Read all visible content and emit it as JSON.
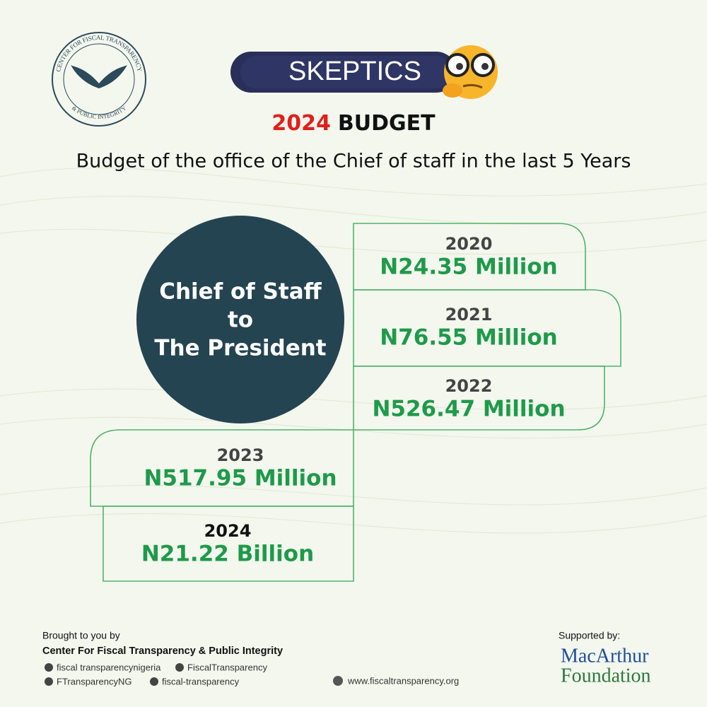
{
  "logo": {
    "ring_top": "CENTER FOR FISCAL TRANSPARENCY",
    "ring_bottom": "& PUBLIC INTEGRITY"
  },
  "header": {
    "badge": "SKEPTICS",
    "title_year": "2024",
    "title_rest": "BUDGET",
    "subtitle": "Budget of the office of the Chief of staff in the last 5 Years"
  },
  "center": {
    "lines": [
      "Chief of Staff",
      "to",
      "The President"
    ]
  },
  "entries": [
    {
      "year": "2020",
      "amount": "N24.35 Million"
    },
    {
      "year": "2021",
      "amount": "N76.55 Million"
    },
    {
      "year": "2022",
      "amount": "N526.47 Million"
    },
    {
      "year": "2023",
      "amount": "N517.95 Million"
    },
    {
      "year": "2024",
      "amount": "N21.22 Billion"
    }
  ],
  "footer": {
    "intro": "Brought to you by",
    "org": "Center For Fiscal Transparency & Public Integrity",
    "socials": [
      "fiscal transparencynigeria",
      "FiscalTransparency",
      "FTransparencyNG",
      "fiscal-transparency"
    ],
    "website": "www.fiscaltransparency.org",
    "support_label": "Supported by:",
    "sponsor": [
      "MacArthur",
      "Foundation"
    ]
  }
}
